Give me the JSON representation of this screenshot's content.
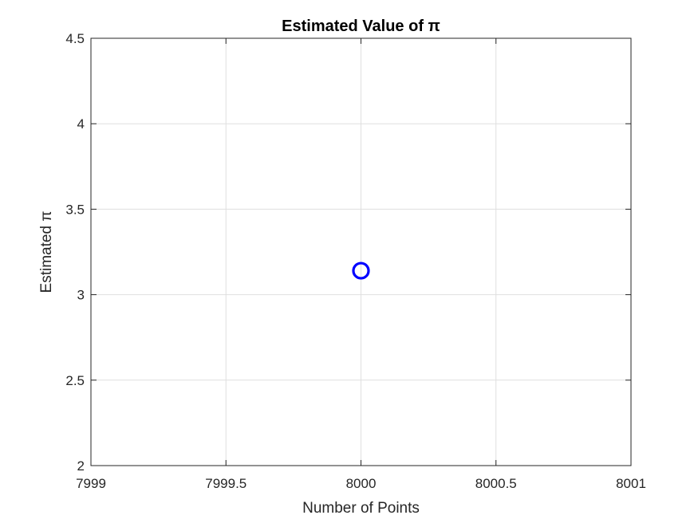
{
  "chart_data": {
    "type": "scatter",
    "title": "Estimated Value of π",
    "xlabel": "Number of Points",
    "ylabel": "Estimated π",
    "xlim": [
      7999,
      8001
    ],
    "ylim": [
      2,
      4.5
    ],
    "xticks": [
      7999,
      7999.5,
      8000,
      8000.5,
      8001
    ],
    "yticks": [
      2,
      2.5,
      3,
      3.5,
      4,
      4.5
    ],
    "xtick_labels": [
      "7999",
      "7999.5",
      "8000",
      "8000.5",
      "8001"
    ],
    "ytick_labels": [
      "2",
      "2.5",
      "3",
      "3.5",
      "4",
      "4.5"
    ],
    "grid": true,
    "marker": "circle-open",
    "color": "#0000ff",
    "series": [
      {
        "x": [
          8000
        ],
        "y": [
          3.14
        ]
      }
    ]
  }
}
